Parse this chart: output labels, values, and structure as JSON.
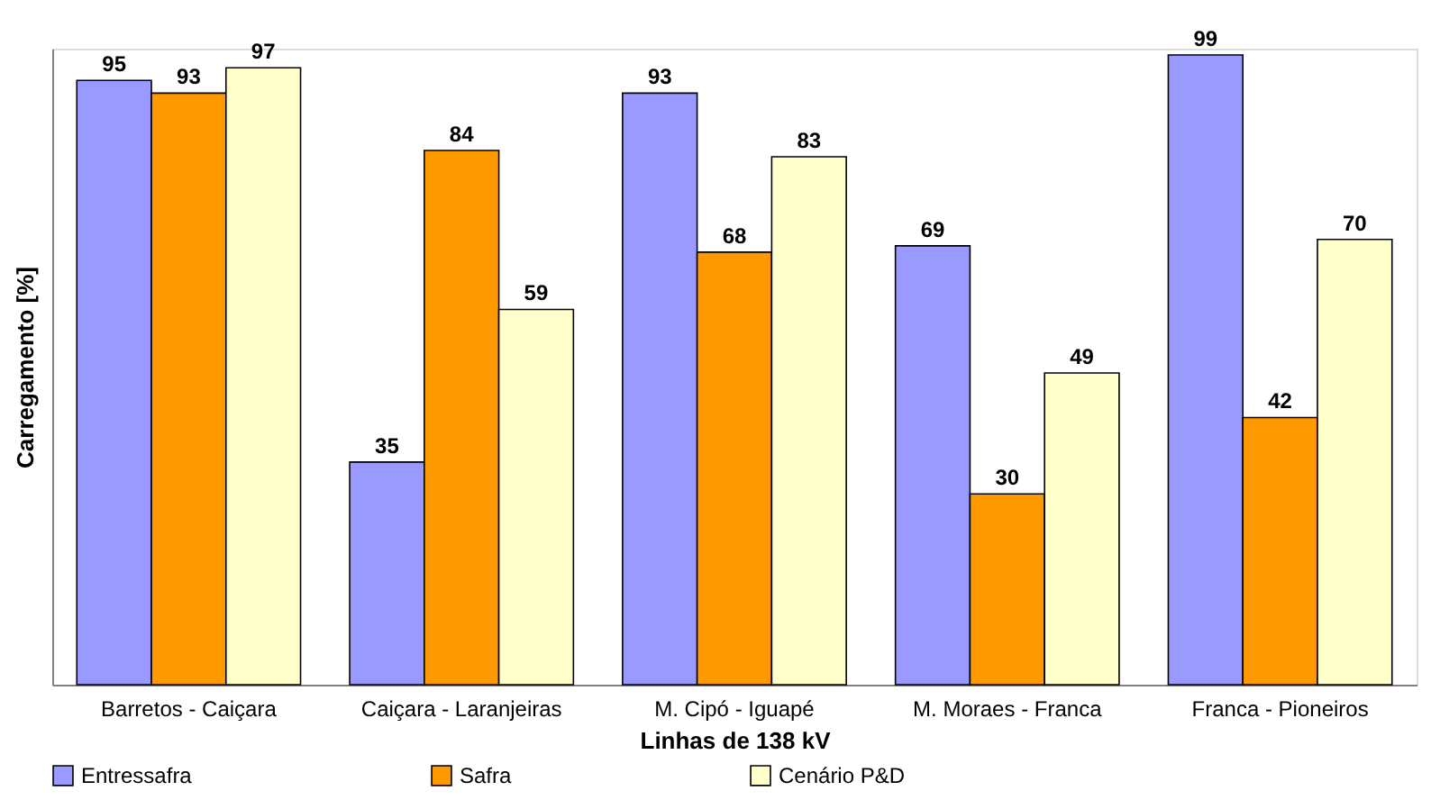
{
  "chart_data": {
    "type": "bar",
    "xlabel": "Linhas de 138 kV",
    "ylabel": "Carregamento [%]",
    "categories": [
      "Barretos - Caiçara",
      "Caiçara - Laranjeiras",
      "M. Cipó - Iguapé",
      "M. Moraes - Franca",
      "Franca - Pioneiros"
    ],
    "series": [
      {
        "name": "Entressafra",
        "color": "#9999ff",
        "values": [
          95,
          35,
          93,
          69,
          99
        ]
      },
      {
        "name": "Safra",
        "color": "#ff9900",
        "values": [
          93,
          84,
          68,
          30,
          42
        ]
      },
      {
        "name": "Cenário P&D",
        "color": "#ffffcc",
        "values": [
          97,
          59,
          83,
          49,
          70
        ]
      }
    ],
    "ylim": [
      0,
      100
    ],
    "tick_labels": "x",
    "data_labels": true,
    "grid": false,
    "legend": "bottom"
  }
}
